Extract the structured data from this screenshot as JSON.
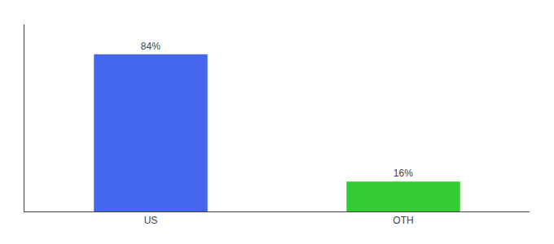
{
  "chart_data": {
    "type": "bar",
    "categories": [
      "US",
      "OTH"
    ],
    "values": [
      84,
      16
    ],
    "value_labels": [
      "84%",
      "16%"
    ],
    "colors": [
      "#4466EE",
      "#33CC33"
    ],
    "ylim": [
      0,
      100
    ],
    "data_labels": true,
    "tick_labels": "x",
    "grid": false
  }
}
